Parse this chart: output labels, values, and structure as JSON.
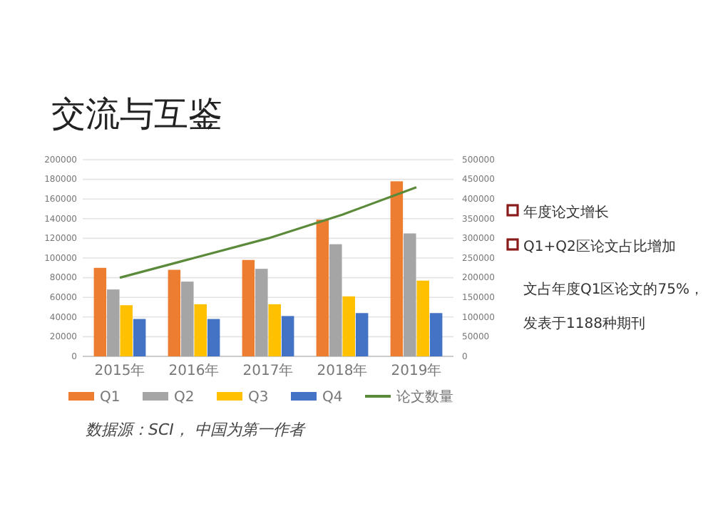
{
  "chart_data": {
    "type": "bar",
    "title": "交流与互鉴",
    "categories": [
      "2015年",
      "2016年",
      "2017年",
      "2018年",
      "2019年"
    ],
    "series": [
      {
        "name": "Q1",
        "color": "#ed7d31",
        "values": [
          90000,
          88000,
          98000,
          139000,
          178000
        ]
      },
      {
        "name": "Q2",
        "color": "#a5a5a5",
        "values": [
          68000,
          76000,
          89000,
          114000,
          125000
        ]
      },
      {
        "name": "Q3",
        "color": "#ffc000",
        "values": [
          52000,
          53000,
          53000,
          61000,
          77000
        ]
      },
      {
        "name": "Q4",
        "color": "#4472c4",
        "values": [
          38000,
          38000,
          41000,
          44000,
          44000
        ]
      },
      {
        "name": "论文数量",
        "type": "line",
        "axis": "y2",
        "color": "#5b8a3a",
        "values": [
          200000,
          250000,
          300000,
          360000,
          430000
        ]
      }
    ],
    "ylim": [
      0,
      200000
    ],
    "yticks": [
      0,
      20000,
      40000,
      60000,
      80000,
      100000,
      120000,
      140000,
      160000,
      180000,
      200000
    ],
    "y2lim": [
      0,
      500000
    ],
    "y2ticks": [
      0,
      50000,
      100000,
      150000,
      200000,
      250000,
      300000,
      350000,
      400000,
      450000,
      500000
    ],
    "grid": "y",
    "legend": "bottom",
    "annotations": [
      "年度论文增长",
      "Q1+Q2区论文占比增加",
      "文占年度Q1区论文的75%，",
      "发表于1188种期刊",
      "数据源：SCI， 中国为第一作者"
    ]
  }
}
